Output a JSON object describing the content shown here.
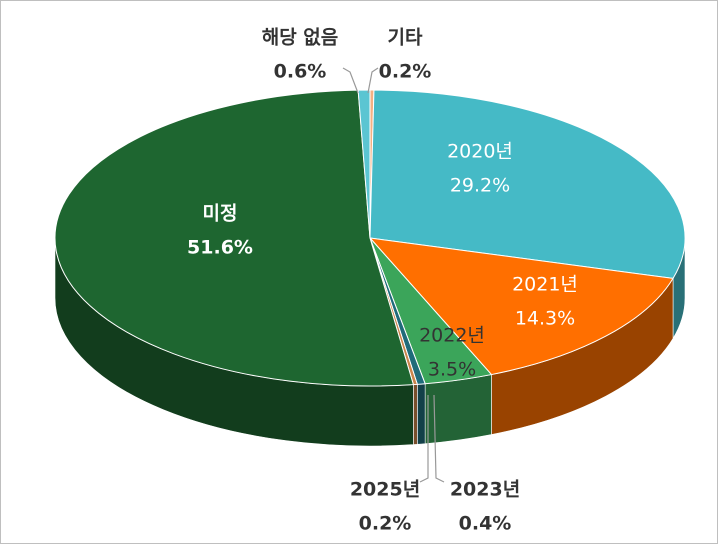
{
  "chart_data": {
    "type": "pie3d",
    "categories": [
      "기타",
      "2020년",
      "2021년",
      "2022년",
      "2023년",
      "2025년",
      "미정",
      "해당 없음"
    ],
    "values": [
      0.2,
      29.2,
      14.3,
      3.5,
      0.4,
      0.2,
      51.6,
      0.6
    ],
    "value_labels": [
      "0.2%",
      "29.2%",
      "14.3%",
      "3.5%",
      "0.4%",
      "0.2%",
      "51.6%",
      "0.6%"
    ],
    "colors": [
      "#F4B183",
      "#45BAC6",
      "#FF6F00",
      "#3BA55A",
      "#1F6B7A",
      "#C9844A",
      "#1E6630",
      "#5BC5D2"
    ]
  }
}
